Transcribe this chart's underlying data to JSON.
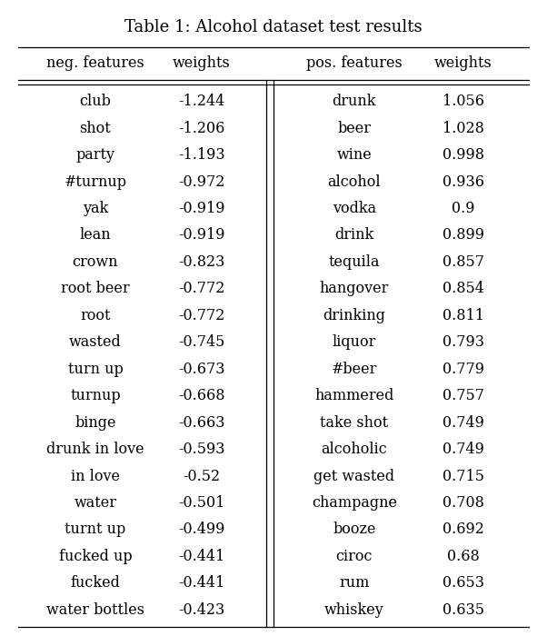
{
  "title": "Table 1: Alcohol dataset test results",
  "col_headers": [
    "neg. features",
    "weights",
    "pos. features",
    "weights"
  ],
  "neg_features": [
    "club",
    "shot",
    "party",
    "#turnup",
    "yak",
    "lean",
    "crown",
    "root beer",
    "root",
    "wasted",
    "turn up",
    "turnup",
    "binge",
    "drunk in love",
    "in love",
    "water",
    "turnt up",
    "fucked up",
    "fucked",
    "water bottles"
  ],
  "neg_weights": [
    "-1.244",
    "-1.206",
    "-1.193",
    "-0.972",
    "-0.919",
    "-0.919",
    "-0.823",
    "-0.772",
    "-0.772",
    "-0.745",
    "-0.673",
    "-0.668",
    "-0.663",
    "-0.593",
    "-0.52",
    "-0.501",
    "-0.499",
    "-0.441",
    "-0.441",
    "-0.423"
  ],
  "pos_features": [
    "drunk",
    "beer",
    "wine",
    "alcohol",
    "vodka",
    "drink",
    "tequila",
    "hangover",
    "drinking",
    "liquor",
    "#beer",
    "hammered",
    "take shot",
    "alcoholic",
    "get wasted",
    "champagne",
    "booze",
    "ciroc",
    "rum",
    "whiskey"
  ],
  "pos_weights": [
    "1.056",
    "1.028",
    "0.998",
    "0.936",
    "0.9",
    "0.899",
    "0.857",
    "0.854",
    "0.811",
    "0.793",
    "0.779",
    "0.757",
    "0.749",
    "0.749",
    "0.715",
    "0.708",
    "0.692",
    "0.68",
    "0.653",
    "0.635"
  ],
  "background_color": "#ffffff",
  "text_color": "#000000",
  "data_fontsize": 11.5,
  "header_fontsize": 11.5,
  "title_fontsize": 13
}
